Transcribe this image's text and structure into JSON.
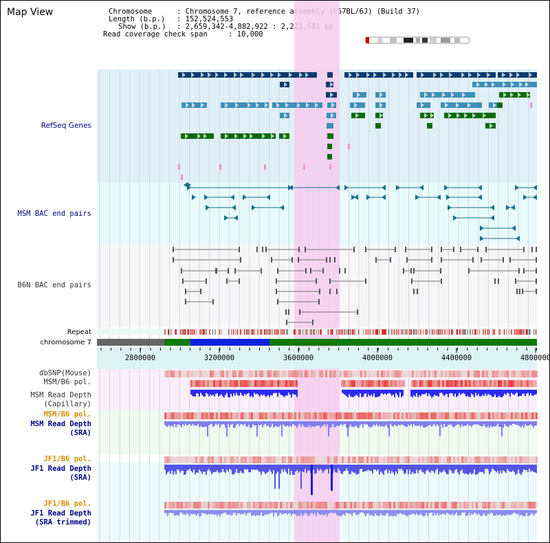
{
  "view_title": "Map View",
  "info": {
    "chromosome_key": "Chromosome",
    "chromosome_val": ": Chromosome 7, reference assembly (C57BL/6J) (Build 37)",
    "length_key": "Length (b.p.)",
    "length_val": ": 152,524,553",
    "show_key": "Show (b.p.)",
    "show_val": ": 2,659,342-4,882,922 : 2,223,581 bp",
    "coverage_key": "Read coverage check span",
    "coverage_val": ": 10,000"
  },
  "tracks": {
    "refseq": "RefSeq Genes",
    "msm_bac": "MSM BAC end pairs",
    "b6n_bac": "B6N BAC end pairs",
    "repeat": "Repeat",
    "chromosome": "chromosome 7",
    "dbsnp": "dbSNP(Mouse)",
    "msm_b6_pol_1": "MSM/B6 pol.",
    "msm_depth_cap_1": "MSM Read Depth",
    "msm_depth_cap_2": "(Capillary)",
    "msm_b6_pol_2": "MSM/B6 pol.",
    "msm_depth_sra_1": "MSM Read Depth",
    "msm_depth_sra_2": "(SRA)",
    "jf1_b6_pol_1": "JF1/B6 pol.",
    "jf1_depth_sra_1": "JF1 Read Depth",
    "jf1_depth_sra_2": "(SRA)",
    "jf1_b6_pol_2": "JF1/B6 pol.",
    "jf1_depth_trim_1": "JF1 Read Depth",
    "jf1_depth_trim_2": "(SRA trimmed)"
  },
  "axis": {
    "ticks": [
      "2800000",
      "3200000",
      "3600000",
      "4000000",
      "4400000",
      "4800000"
    ]
  },
  "colors": {
    "refseq_bg": "#dff0f8",
    "msm_bac_bg": "#e6fbfb",
    "b6n_bac_bg": "#f6f6f6",
    "highlight": "#f7cdef",
    "gene_dark": "#0d3b6e",
    "gene_mid": "#3f8fb8",
    "gene_green": "#0b6b0b",
    "msm_line": "#1a6f8a",
    "b6n_line": "#707070",
    "label_blue": "#000080",
    "label_orange": "#d98c00",
    "label_gray": "#333333"
  }
}
